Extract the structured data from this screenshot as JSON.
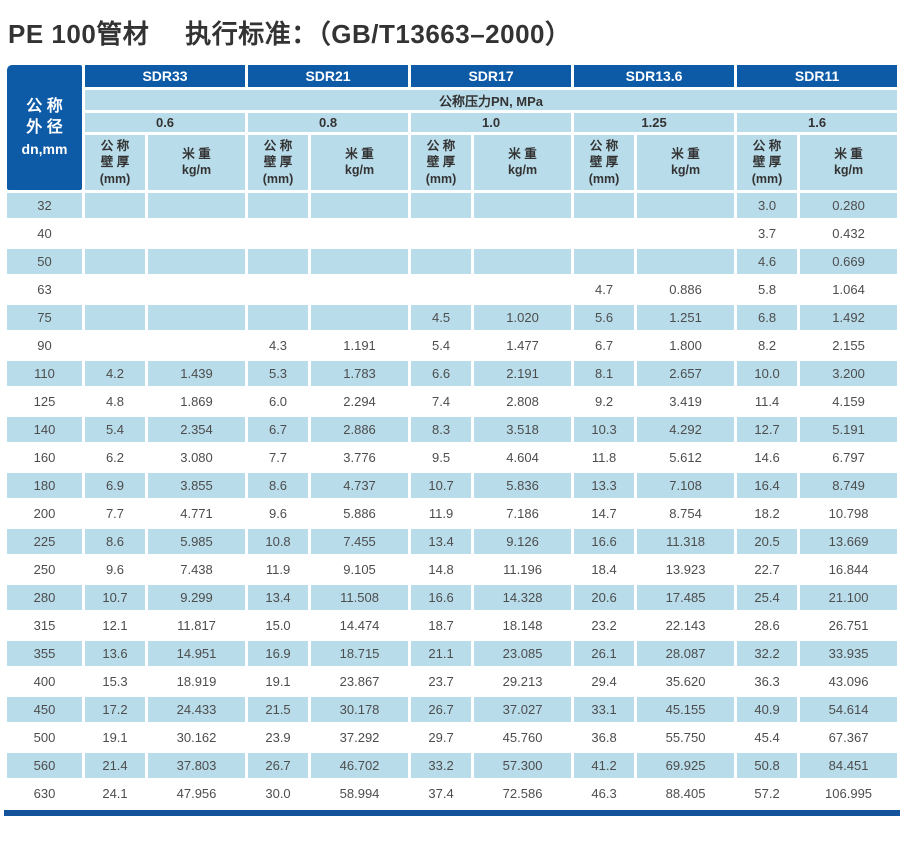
{
  "title": {
    "product": "PE 100管材",
    "standard": "执行标准：（GB/T13663–2000）"
  },
  "colors": {
    "header_blue": "#0d5aa7",
    "light_blue": "#b9dcea",
    "text_dark": "#4d4d4d",
    "bar_blue": "#14529c",
    "title_color": "#333333"
  },
  "table": {
    "corner": {
      "line1": "公 称",
      "line2": "外 径",
      "line3": "dn,mm"
    },
    "sdr_headers": [
      "SDR33",
      "SDR21",
      "SDR17",
      "SDR13.6",
      "SDR11"
    ],
    "pressure_title": "公称压力PN, MPa",
    "pressures": [
      "0.6",
      "0.8",
      "1.0",
      "1.25",
      "1.6"
    ],
    "sub_headers": {
      "wall": [
        "公 称",
        "壁 厚",
        "(mm)"
      ],
      "weight": [
        "米 重",
        "kg/m"
      ]
    },
    "rows": [
      {
        "dn": "32",
        "values": [
          "",
          "",
          "",
          "",
          "",
          "",
          "",
          "",
          "3.0",
          "0.280"
        ]
      },
      {
        "dn": "40",
        "values": [
          "",
          "",
          "",
          "",
          "",
          "",
          "",
          "",
          "3.7",
          "0.432"
        ]
      },
      {
        "dn": "50",
        "values": [
          "",
          "",
          "",
          "",
          "",
          "",
          "",
          "",
          "4.6",
          "0.669"
        ]
      },
      {
        "dn": "63",
        "values": [
          "",
          "",
          "",
          "",
          "",
          "",
          "4.7",
          "0.886",
          "5.8",
          "1.064"
        ]
      },
      {
        "dn": "75",
        "values": [
          "",
          "",
          "",
          "",
          "4.5",
          "1.020",
          "5.6",
          "1.251",
          "6.8",
          "1.492"
        ]
      },
      {
        "dn": "90",
        "values": [
          "",
          "",
          "4.3",
          "1.191",
          "5.4",
          "1.477",
          "6.7",
          "1.800",
          "8.2",
          "2.155"
        ]
      },
      {
        "dn": "110",
        "values": [
          "4.2",
          "1.439",
          "5.3",
          "1.783",
          "6.6",
          "2.191",
          "8.1",
          "2.657",
          "10.0",
          "3.200"
        ]
      },
      {
        "dn": "125",
        "values": [
          "4.8",
          "1.869",
          "6.0",
          "2.294",
          "7.4",
          "2.808",
          "9.2",
          "3.419",
          "11.4",
          "4.159"
        ]
      },
      {
        "dn": "140",
        "values": [
          "5.4",
          "2.354",
          "6.7",
          "2.886",
          "8.3",
          "3.518",
          "10.3",
          "4.292",
          "12.7",
          "5.191"
        ]
      },
      {
        "dn": "160",
        "values": [
          "6.2",
          "3.080",
          "7.7",
          "3.776",
          "9.5",
          "4.604",
          "11.8",
          "5.612",
          "14.6",
          "6.797"
        ]
      },
      {
        "dn": "180",
        "values": [
          "6.9",
          "3.855",
          "8.6",
          "4.737",
          "10.7",
          "5.836",
          "13.3",
          "7.108",
          "16.4",
          "8.749"
        ]
      },
      {
        "dn": "200",
        "values": [
          "7.7",
          "4.771",
          "9.6",
          "5.886",
          "11.9",
          "7.186",
          "14.7",
          "8.754",
          "18.2",
          "10.798"
        ]
      },
      {
        "dn": "225",
        "values": [
          "8.6",
          "5.985",
          "10.8",
          "7.455",
          "13.4",
          "9.126",
          "16.6",
          "11.318",
          "20.5",
          "13.669"
        ]
      },
      {
        "dn": "250",
        "values": [
          "9.6",
          "7.438",
          "11.9",
          "9.105",
          "14.8",
          "11.196",
          "18.4",
          "13.923",
          "22.7",
          "16.844"
        ]
      },
      {
        "dn": "280",
        "values": [
          "10.7",
          "9.299",
          "13.4",
          "11.508",
          "16.6",
          "14.328",
          "20.6",
          "17.485",
          "25.4",
          "21.100"
        ]
      },
      {
        "dn": "315",
        "values": [
          "12.1",
          "11.817",
          "15.0",
          "14.474",
          "18.7",
          "18.148",
          "23.2",
          "22.143",
          "28.6",
          "26.751"
        ]
      },
      {
        "dn": "355",
        "values": [
          "13.6",
          "14.951",
          "16.9",
          "18.715",
          "21.1",
          "23.085",
          "26.1",
          "28.087",
          "32.2",
          "33.935"
        ]
      },
      {
        "dn": "400",
        "values": [
          "15.3",
          "18.919",
          "19.1",
          "23.867",
          "23.7",
          "29.213",
          "29.4",
          "35.620",
          "36.3",
          "43.096"
        ]
      },
      {
        "dn": "450",
        "values": [
          "17.2",
          "24.433",
          "21.5",
          "30.178",
          "26.7",
          "37.027",
          "33.1",
          "45.155",
          "40.9",
          "54.614"
        ]
      },
      {
        "dn": "500",
        "values": [
          "19.1",
          "30.162",
          "23.9",
          "37.292",
          "29.7",
          "45.760",
          "36.8",
          "55.750",
          "45.4",
          "67.367"
        ]
      },
      {
        "dn": "560",
        "values": [
          "21.4",
          "37.803",
          "26.7",
          "46.702",
          "33.2",
          "57.300",
          "41.2",
          "69.925",
          "50.8",
          "84.451"
        ]
      },
      {
        "dn": "630",
        "values": [
          "24.1",
          "47.956",
          "30.0",
          "58.994",
          "37.4",
          "72.586",
          "46.3",
          "88.405",
          "57.2",
          "106.995"
        ]
      }
    ]
  }
}
